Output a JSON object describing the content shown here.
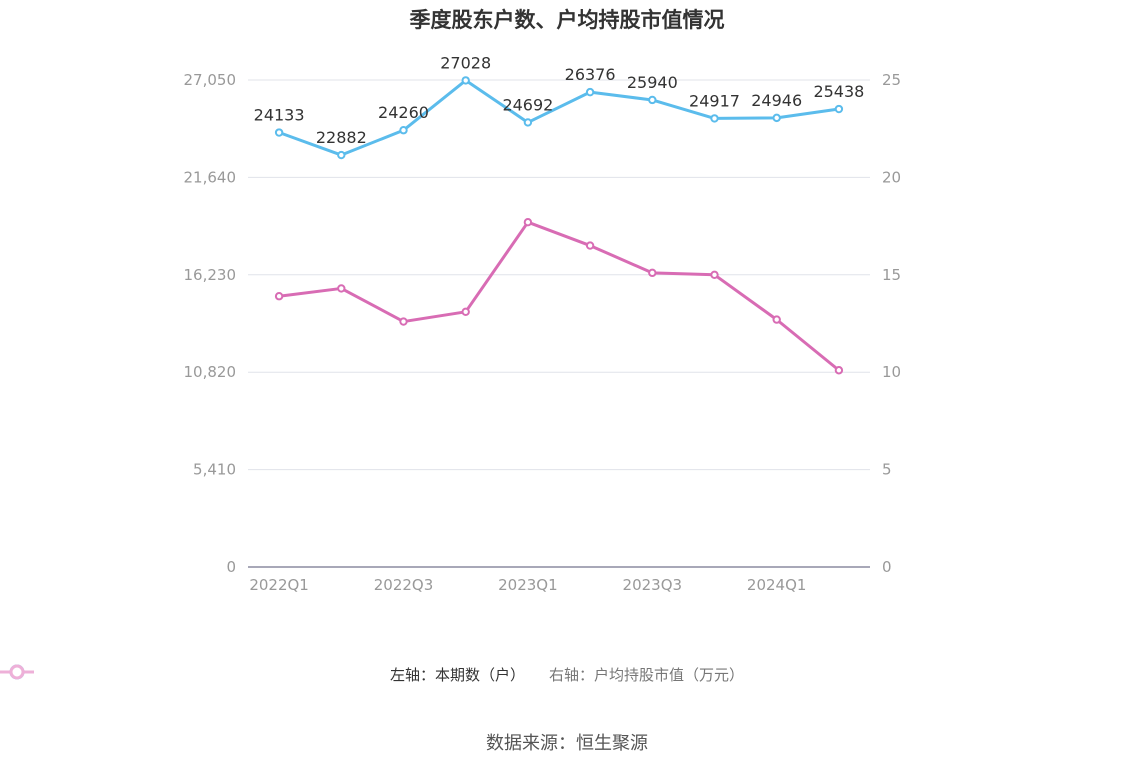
{
  "chart_data": {
    "type": "line",
    "title": "季度股东户数、户均持股市值情况",
    "categories": [
      "2022Q1",
      "2022Q2",
      "2022Q3",
      "2022Q4",
      "2023Q1",
      "2023Q2",
      "2023Q3",
      "2023Q4",
      "2024Q1",
      "2024Q2"
    ],
    "x_tick_labels": [
      "2022Q1",
      "2022Q3",
      "2023Q1",
      "2023Q3",
      "2024Q1"
    ],
    "series": [
      {
        "name": "左轴：本期数（户）",
        "axis": "left",
        "color": "#5bbcec",
        "values": [
          24133,
          22882,
          24260,
          27028,
          24692,
          26376,
          25940,
          24917,
          24946,
          25438
        ],
        "data_labels": [
          "24133",
          "22882",
          "24260",
          "27028",
          "24692",
          "26376",
          "25940",
          "24917",
          "24946",
          "25438"
        ]
      },
      {
        "name": "右轴：户均持股市值（万元）",
        "axis": "right",
        "color": "#d86cb4",
        "values": [
          13.9,
          14.3,
          12.6,
          13.1,
          17.7,
          16.5,
          15.1,
          15.0,
          12.7,
          10.1
        ]
      }
    ],
    "left_axis": {
      "ylim": [
        0,
        27050
      ],
      "ticks": [
        0,
        5410,
        10820,
        16230,
        21640,
        27050
      ],
      "tick_labels": [
        "0",
        "5,410",
        "10,820",
        "16,230",
        "21,640",
        "27,050"
      ]
    },
    "right_axis": {
      "ylim": [
        0,
        25
      ],
      "ticks": [
        0,
        5,
        10,
        15,
        20,
        25
      ],
      "tick_labels": [
        "0",
        "5",
        "10",
        "15",
        "20",
        "25"
      ]
    },
    "grid": true,
    "legend_position": "bottom"
  },
  "source_text": "数据来源：恒生聚源"
}
